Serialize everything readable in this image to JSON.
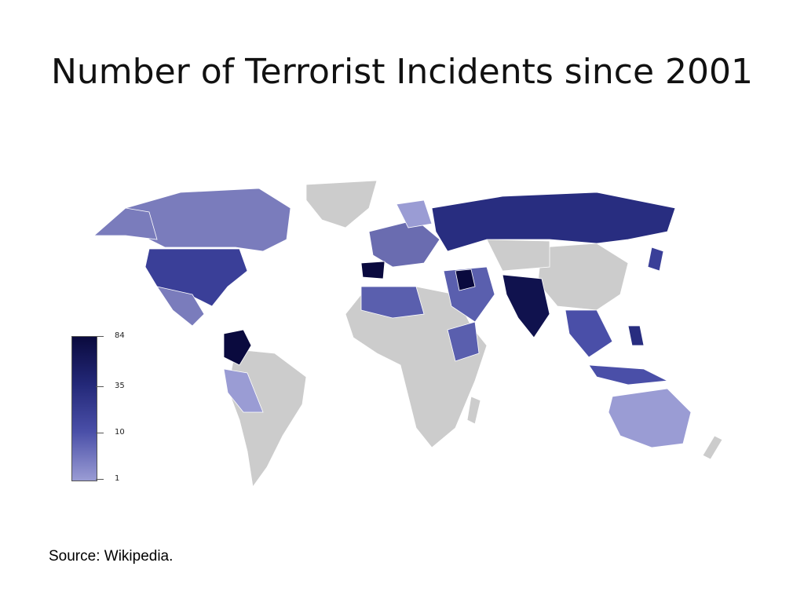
{
  "title": "Number of Terrorist Incidents since 2001",
  "legend": {
    "labels": [
      "84",
      "35",
      "10",
      "1"
    ]
  },
  "source": "Source: Wikipedia.",
  "colors": {
    "no_data": "#cccccc",
    "level_1": "#9a9cd4",
    "level_10": "#4a4fa8",
    "level_35": "#232878",
    "level_84": "#0a0a3e"
  }
}
